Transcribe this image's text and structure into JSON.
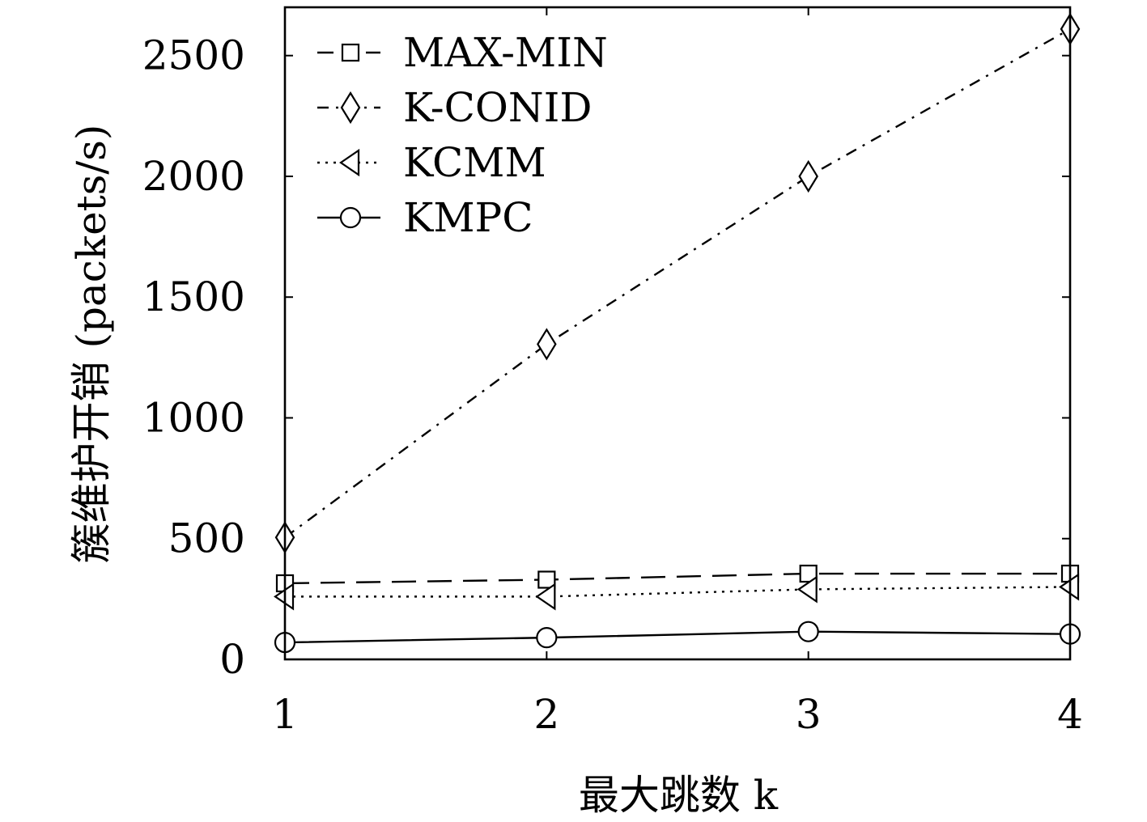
{
  "chart_data": {
    "type": "line",
    "x": [
      1,
      2,
      3,
      4
    ],
    "xticks": [
      "1",
      "2",
      "3",
      "4"
    ],
    "yticks": [
      "0",
      "500",
      "1000",
      "1500",
      "2000",
      "2500"
    ],
    "xlabel": "最大跳数 k",
    "ylabel": "簇维护开销 (packets/s)",
    "xlim": [
      1,
      4
    ],
    "ylim": [
      0,
      2700
    ],
    "legend_position": "top-left",
    "grid": false,
    "series": [
      {
        "name": "MAX-MIN",
        "marker": "square",
        "dash": "long-dash",
        "values": [
          315,
          330,
          355,
          355
        ]
      },
      {
        "name": "K-CONID",
        "marker": "diamond",
        "dash": "dash-dot",
        "values": [
          505,
          1305,
          2000,
          2610
        ]
      },
      {
        "name": "KCMM",
        "marker": "triangle-left",
        "dash": "dotted",
        "values": [
          260,
          260,
          290,
          300
        ]
      },
      {
        "name": "KMPC",
        "marker": "circle",
        "dash": "solid",
        "values": [
          70,
          90,
          115,
          105
        ]
      }
    ]
  }
}
